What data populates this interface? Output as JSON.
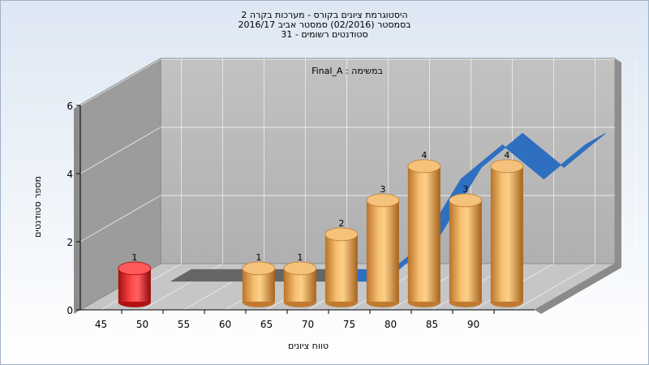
{
  "chart_data": {
    "type": "bar",
    "title_lines": [
      "היסטוגרמת ציונים בקורס - מערכות בקרה 2",
      "בסמסטר  (02/2016)  סמסטר אביב 2016/17",
      "סטודנטים רשומים - 31"
    ],
    "inner_label": "במשימה : Final_A",
    "xlabel": "טווח ציונים",
    "ylabel": "מספר סטודנטים",
    "x_ticks": [
      "45",
      "50",
      "55",
      "60",
      "65",
      "70",
      "75",
      "80",
      "85",
      "90"
    ],
    "y_ticks": [
      "0",
      "2",
      "4",
      "6"
    ],
    "ylim": [
      0,
      6
    ],
    "bars": [
      {
        "x": 47.5,
        "value": 1,
        "color": "#e02020"
      },
      {
        "x": 62.5,
        "value": 1,
        "color": "#e8a040"
      },
      {
        "x": 67.5,
        "value": 1,
        "color": "#e8a040"
      },
      {
        "x": 72.5,
        "value": 2,
        "color": "#e8a040"
      },
      {
        "x": 77.5,
        "value": 3,
        "color": "#e8a040"
      },
      {
        "x": 82.5,
        "value": 4,
        "color": "#e8a040"
      },
      {
        "x": 87.5,
        "value": 3,
        "color": "#e8a040"
      },
      {
        "x": 92.5,
        "value": 4,
        "color": "#e8a040"
      }
    ],
    "ribbons": [
      {
        "color": "#666666",
        "points": [
          [
            47.5,
            0
          ],
          [
            52.5,
            0
          ],
          [
            57.5,
            0
          ],
          [
            62.5,
            0
          ],
          [
            67.5,
            0
          ]
        ]
      },
      {
        "color": "#2f6fc0",
        "points": [
          [
            67.5,
            0
          ],
          [
            72.5,
            0
          ],
          [
            77.5,
            1
          ],
          [
            82.5,
            3
          ],
          [
            87.5,
            4
          ],
          [
            92.5,
            3
          ],
          [
            97.5,
            4
          ]
        ]
      }
    ],
    "grid": true,
    "legend": "none"
  }
}
